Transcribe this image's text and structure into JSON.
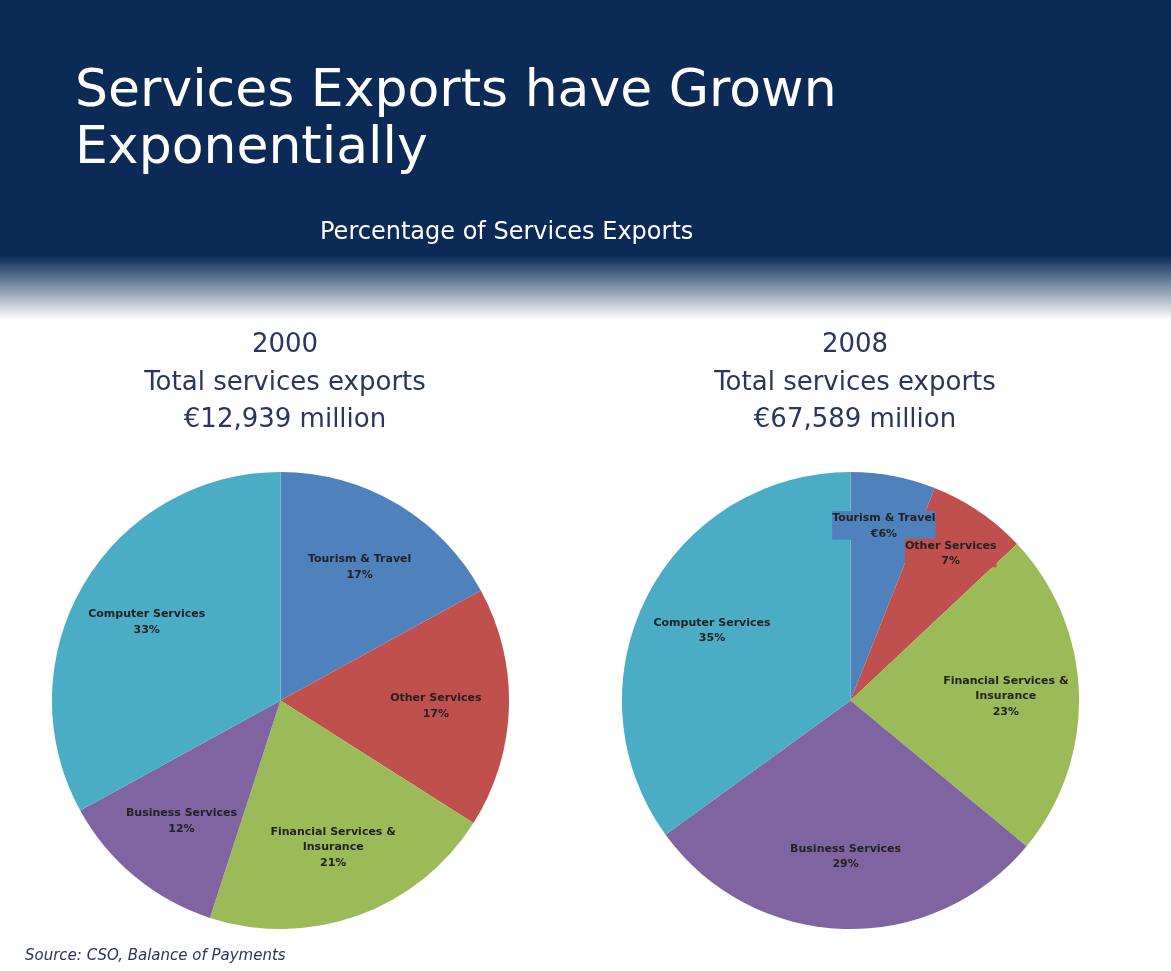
{
  "chart_data": [
    {
      "type": "pie",
      "title": "2000",
      "subtitle": "Total services exports €12,939 million",
      "annotations": [
        "Services Exports have Grown Exponentially",
        "Percentage of Services Exports",
        "Source: CSO, Balance of Payments"
      ],
      "categories": [
        "Tourism & Travel",
        "Other Services",
        "Financial Services & Insurance",
        "Business Services",
        "Computer Services"
      ],
      "values": [
        17,
        17,
        21,
        12,
        33
      ],
      "value_labels": [
        "17%",
        "17%",
        "21%",
        "12%",
        "33%"
      ],
      "colors": [
        "#4f81bd",
        "#c0504d",
        "#9bbb59",
        "#8064a2",
        "#4bacc6"
      ]
    },
    {
      "type": "pie",
      "title": "2008",
      "subtitle": "Total services exports €67,589 million",
      "categories": [
        "Tourism & Travel",
        "Other Services",
        "Financial Services & Insurance",
        "Business Services",
        "Computer Services"
      ],
      "values": [
        6,
        7,
        23,
        29,
        35
      ],
      "value_labels": [
        "€6%",
        "7%",
        "23%",
        "29%",
        "35%"
      ],
      "colors": [
        "#4f81bd",
        "#c0504d",
        "#9bbb59",
        "#8064a2",
        "#4bacc6"
      ]
    }
  ]
}
